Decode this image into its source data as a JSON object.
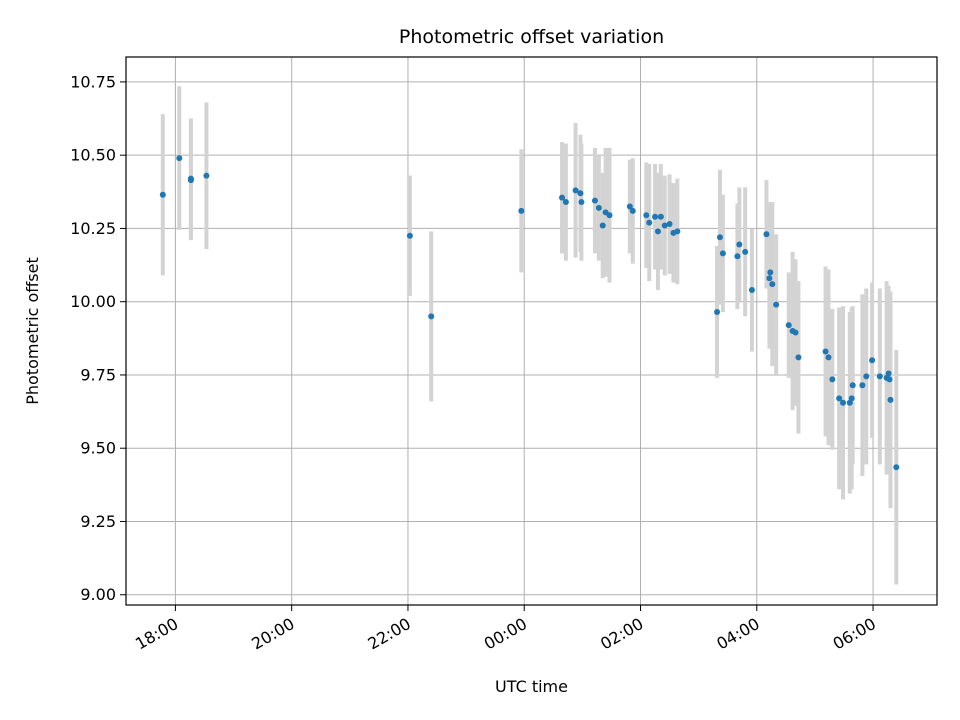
{
  "chart_data": {
    "type": "scatter",
    "title": "Photometric offset variation",
    "xlabel": "UTC time",
    "ylabel": "Photometric offset",
    "x_tick_labels": [
      "18:00",
      "20:00",
      "22:00",
      "00:00",
      "02:00",
      "04:00",
      "06:00"
    ],
    "x_tick_hours": [
      18,
      20,
      22,
      24,
      26,
      28,
      30
    ],
    "xlim_hours": [
      17.15,
      31.1
    ],
    "y_ticks": [
      "9.00",
      "9.25",
      "9.50",
      "9.75",
      "10.00",
      "10.25",
      "10.50",
      "10.75"
    ],
    "ylim": [
      8.965,
      10.835
    ],
    "grid": true,
    "point_color": "#1f77b4",
    "errorbar_color": "#d3d3d3",
    "series": [
      {
        "points": [
          {
            "x": "17:47",
            "y": 10.365,
            "yerr": 0.275
          },
          {
            "x": "18:04",
            "y": 10.49,
            "yerr": 0.245
          },
          {
            "x": "18:16",
            "y": 10.415,
            "yerr": 0.205
          },
          {
            "x": "18:16",
            "y": 10.42,
            "yerr": 0.205
          },
          {
            "x": "18:32",
            "y": 10.43,
            "yerr": 0.25
          },
          {
            "x": "22:02",
            "y": 10.225,
            "yerr": 0.205
          },
          {
            "x": "22:24",
            "y": 9.95,
            "yerr": 0.29
          },
          {
            "x": "23:57",
            "y": 10.31,
            "yerr": 0.21
          },
          {
            "x": "00:39",
            "y": 10.355,
            "yerr": 0.19
          },
          {
            "x": "00:43",
            "y": 10.34,
            "yerr": 0.2
          },
          {
            "x": "00:53",
            "y": 10.38,
            "yerr": 0.23
          },
          {
            "x": "00:58",
            "y": 10.37,
            "yerr": 0.2
          },
          {
            "x": "00:59",
            "y": 10.34,
            "yerr": 0.2
          },
          {
            "x": "01:13",
            "y": 10.345,
            "yerr": 0.18
          },
          {
            "x": "01:17",
            "y": 10.32,
            "yerr": 0.18
          },
          {
            "x": "01:21",
            "y": 10.26,
            "yerr": 0.18
          },
          {
            "x": "01:24",
            "y": 10.305,
            "yerr": 0.22
          },
          {
            "x": "01:28",
            "y": 10.295,
            "yerr": 0.23
          },
          {
            "x": "01:49",
            "y": 10.325,
            "yerr": 0.16
          },
          {
            "x": "01:52",
            "y": 10.31,
            "yerr": 0.18
          },
          {
            "x": "02:06",
            "y": 10.295,
            "yerr": 0.18
          },
          {
            "x": "02:09",
            "y": 10.27,
            "yerr": 0.2
          },
          {
            "x": "02:15",
            "y": 10.29,
            "yerr": 0.18
          },
          {
            "x": "02:18",
            "y": 10.24,
            "yerr": 0.2
          },
          {
            "x": "02:21",
            "y": 10.29,
            "yerr": 0.18
          },
          {
            "x": "02:25",
            "y": 10.26,
            "yerr": 0.17
          },
          {
            "x": "02:30",
            "y": 10.265,
            "yerr": 0.17
          },
          {
            "x": "02:34",
            "y": 10.235,
            "yerr": 0.17
          },
          {
            "x": "02:38",
            "y": 10.24,
            "yerr": 0.18
          },
          {
            "x": "03:19",
            "y": 9.965,
            "yerr": 0.225
          },
          {
            "x": "03:22",
            "y": 10.22,
            "yerr": 0.23
          },
          {
            "x": "03:25",
            "y": 10.165,
            "yerr": 0.2
          },
          {
            "x": "03:40",
            "y": 10.155,
            "yerr": 0.18
          },
          {
            "x": "03:42",
            "y": 10.195,
            "yerr": 0.195
          },
          {
            "x": "03:48",
            "y": 10.17,
            "yerr": 0.22
          },
          {
            "x": "03:55",
            "y": 10.04,
            "yerr": 0.21
          },
          {
            "x": "04:10",
            "y": 10.23,
            "yerr": 0.185
          },
          {
            "x": "04:13",
            "y": 10.08,
            "yerr": 0.24
          },
          {
            "x": "04:14",
            "y": 10.1,
            "yerr": 0.24
          },
          {
            "x": "04:16",
            "y": 10.06,
            "yerr": 0.28
          },
          {
            "x": "04:20",
            "y": 9.99,
            "yerr": 0.24
          },
          {
            "x": "04:33",
            "y": 9.92,
            "yerr": 0.18
          },
          {
            "x": "04:37",
            "y": 9.9,
            "yerr": 0.27
          },
          {
            "x": "04:40",
            "y": 9.895,
            "yerr": 0.25
          },
          {
            "x": "04:43",
            "y": 9.81,
            "yerr": 0.26
          },
          {
            "x": "05:11",
            "y": 9.83,
            "yerr": 0.29
          },
          {
            "x": "05:14",
            "y": 9.81,
            "yerr": 0.3
          },
          {
            "x": "05:18",
            "y": 9.735,
            "yerr": 0.24
          },
          {
            "x": "05:25",
            "y": 9.67,
            "yerr": 0.31
          },
          {
            "x": "05:29",
            "y": 9.655,
            "yerr": 0.33
          },
          {
            "x": "05:36",
            "y": 9.655,
            "yerr": 0.31
          },
          {
            "x": "05:38",
            "y": 9.67,
            "yerr": 0.31
          },
          {
            "x": "05:39",
            "y": 9.715,
            "yerr": 0.27
          },
          {
            "x": "05:49",
            "y": 9.715,
            "yerr": 0.31
          },
          {
            "x": "05:53",
            "y": 9.745,
            "yerr": 0.3
          },
          {
            "x": "05:59",
            "y": 9.8,
            "yerr": 0.265
          },
          {
            "x": "06:07",
            "y": 9.745,
            "yerr": 0.3
          },
          {
            "x": "06:14",
            "y": 9.74,
            "yerr": 0.33
          },
          {
            "x": "06:16",
            "y": 9.755,
            "yerr": 0.3
          },
          {
            "x": "06:17",
            "y": 9.735,
            "yerr": 0.3
          },
          {
            "x": "06:18",
            "y": 9.665,
            "yerr": 0.37
          },
          {
            "x": "06:24",
            "y": 9.435,
            "yerr": 0.4
          }
        ]
      }
    ]
  }
}
